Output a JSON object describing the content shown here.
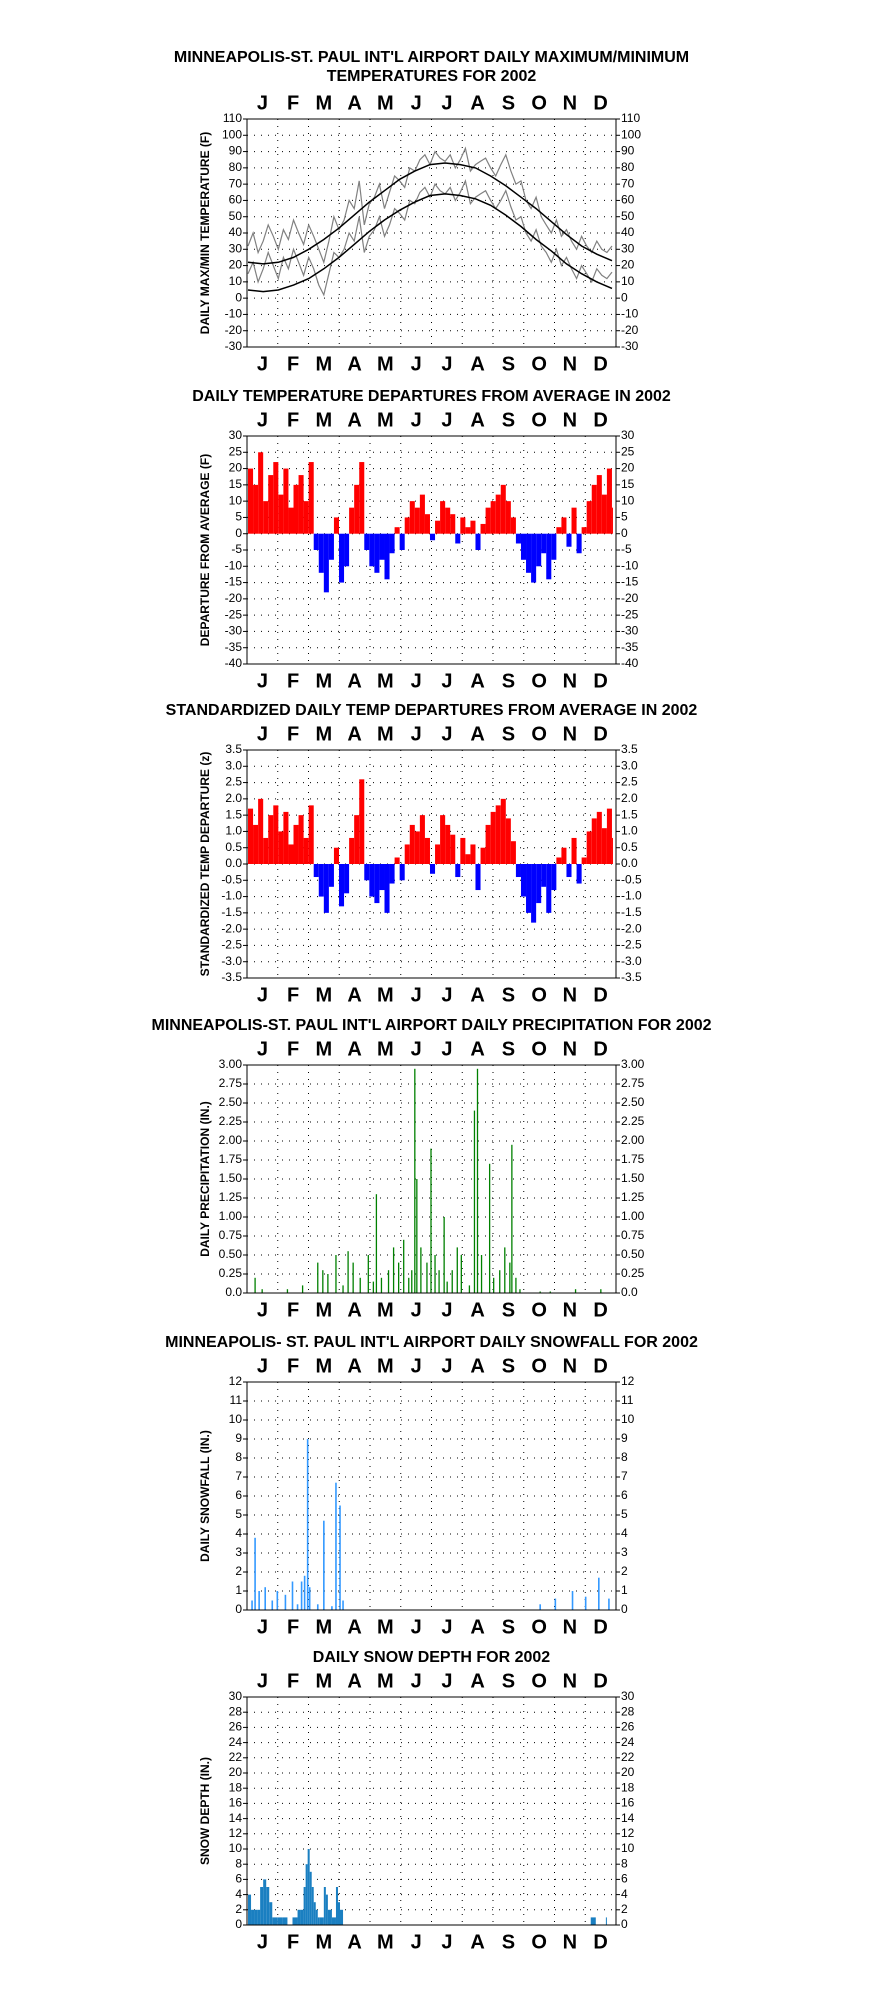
{
  "chart_data": [
    {
      "type": "line",
      "title": [
        "MINNEAPOLIS-ST. PAUL INT'L AIRPORT DAILY MAXIMUM/MINIMUM",
        "TEMPERATURES FOR 2002"
      ],
      "ylabel": "DAILY MAX/MIN TEMPERATURE (F)",
      "categories": [
        "J",
        "F",
        "M",
        "A",
        "M",
        "J",
        "J",
        "A",
        "S",
        "O",
        "N",
        "D"
      ],
      "xlim": [
        0,
        365
      ],
      "ylim": [
        -30,
        110
      ],
      "yticks": [
        -30,
        -20,
        -10,
        0,
        10,
        20,
        30,
        40,
        50,
        60,
        70,
        80,
        90,
        100,
        110
      ],
      "grid": true,
      "series": [
        {
          "color": "#808080",
          "x": [
            1,
            6,
            11,
            16,
            21,
            26,
            31,
            36,
            41,
            46,
            51,
            56,
            61,
            66,
            71,
            76,
            81,
            86,
            91,
            96,
            101,
            106,
            111,
            116,
            121,
            126,
            131,
            136,
            141,
            146,
            151,
            156,
            161,
            166,
            171,
            176,
            181,
            186,
            191,
            196,
            201,
            206,
            211,
            216,
            221,
            226,
            231,
            236,
            241,
            246,
            251,
            256,
            261,
            266,
            271,
            276,
            281,
            286,
            291,
            296,
            301,
            306,
            311,
            316,
            321,
            326,
            331,
            336,
            341,
            346,
            351,
            356,
            361
          ],
          "values": [
            32,
            40,
            28,
            35,
            45,
            38,
            30,
            42,
            36,
            48,
            40,
            33,
            45,
            38,
            30,
            22,
            35,
            50,
            42,
            48,
            60,
            55,
            72,
            45,
            58,
            62,
            70,
            55,
            65,
            75,
            72,
            68,
            80,
            78,
            85,
            88,
            82,
            90,
            86,
            84,
            88,
            80,
            85,
            92,
            78,
            82,
            84,
            86,
            80,
            75,
            82,
            88,
            78,
            70,
            72,
            60,
            55,
            62,
            50,
            45,
            40,
            48,
            38,
            42,
            35,
            30,
            38,
            32,
            28,
            35,
            30,
            28,
            32
          ]
        },
        {
          "color": "#808080",
          "x": [
            1,
            6,
            11,
            16,
            21,
            26,
            31,
            36,
            41,
            46,
            51,
            56,
            61,
            66,
            71,
            76,
            81,
            86,
            91,
            96,
            101,
            106,
            111,
            116,
            121,
            126,
            131,
            136,
            141,
            146,
            151,
            156,
            161,
            166,
            171,
            176,
            181,
            186,
            191,
            196,
            201,
            206,
            211,
            216,
            221,
            226,
            231,
            236,
            241,
            246,
            251,
            256,
            261,
            266,
            271,
            276,
            281,
            286,
            291,
            296,
            301,
            306,
            311,
            316,
            321,
            326,
            331,
            336,
            341,
            346,
            351,
            356,
            361
          ],
          "values": [
            15,
            22,
            10,
            18,
            28,
            20,
            12,
            25,
            18,
            30,
            22,
            14,
            25,
            18,
            8,
            2,
            15,
            28,
            25,
            30,
            40,
            35,
            50,
            28,
            38,
            42,
            50,
            38,
            45,
            55,
            52,
            48,
            60,
            58,
            65,
            68,
            62,
            70,
            66,
            64,
            68,
            60,
            65,
            72,
            58,
            62,
            64,
            66,
            60,
            55,
            60,
            66,
            56,
            48,
            50,
            40,
            35,
            42,
            32,
            28,
            22,
            30,
            20,
            25,
            18,
            12,
            20,
            15,
            10,
            18,
            14,
            12,
            16
          ]
        },
        {
          "color": "#000000",
          "x": [
            1,
            16,
            31,
            46,
            61,
            76,
            91,
            106,
            121,
            136,
            151,
            166,
            181,
            196,
            211,
            226,
            241,
            256,
            271,
            286,
            301,
            316,
            331,
            346,
            361
          ],
          "values": [
            22,
            21,
            22,
            25,
            30,
            36,
            43,
            51,
            59,
            66,
            73,
            78,
            82,
            83,
            82,
            80,
            75,
            69,
            62,
            55,
            47,
            39,
            32,
            27,
            23
          ]
        },
        {
          "color": "#000000",
          "x": [
            1,
            16,
            31,
            46,
            61,
            76,
            91,
            106,
            121,
            136,
            151,
            166,
            181,
            196,
            211,
            226,
            241,
            256,
            271,
            286,
            301,
            316,
            331,
            346,
            361
          ],
          "values": [
            5,
            4,
            5,
            8,
            12,
            18,
            25,
            33,
            41,
            48,
            54,
            59,
            63,
            64,
            63,
            61,
            57,
            51,
            44,
            36,
            29,
            21,
            15,
            10,
            6
          ]
        }
      ]
    },
    {
      "type": "bar",
      "title": "DAILY TEMPERATURE DEPARTURES FROM AVERAGE IN 2002",
      "ylabel": "DEPARTURE FROM AVERAGE (F)",
      "categories": [
        "J",
        "F",
        "M",
        "A",
        "M",
        "J",
        "J",
        "A",
        "S",
        "O",
        "N",
        "D"
      ],
      "xlim": [
        0,
        365
      ],
      "ylim": [
        -40,
        30
      ],
      "yticks": [
        -40,
        -35,
        -30,
        -25,
        -20,
        -15,
        -10,
        -5,
        0,
        5,
        10,
        15,
        20,
        25,
        30
      ],
      "grid": true,
      "pos_color": "#ff0000",
      "neg_color": "#0000ff",
      "x": [
        1,
        6,
        11,
        16,
        21,
        26,
        31,
        36,
        41,
        46,
        51,
        56,
        61,
        66,
        71,
        76,
        81,
        86,
        91,
        96,
        101,
        106,
        111,
        116,
        121,
        126,
        131,
        136,
        141,
        146,
        151,
        156,
        161,
        166,
        171,
        176,
        181,
        186,
        191,
        196,
        201,
        206,
        211,
        216,
        221,
        226,
        231,
        236,
        241,
        246,
        251,
        256,
        261,
        266,
        271,
        276,
        281,
        286,
        291,
        296,
        301,
        306,
        311,
        316,
        321,
        326,
        331,
        336,
        341,
        346,
        351,
        356,
        361
      ],
      "values": [
        20,
        15,
        25,
        10,
        18,
        22,
        12,
        20,
        8,
        15,
        18,
        10,
        22,
        -5,
        -12,
        -18,
        -8,
        5,
        -15,
        -10,
        8,
        15,
        22,
        -5,
        -10,
        -12,
        -8,
        -14,
        -6,
        2,
        -5,
        5,
        10,
        8,
        12,
        6,
        -2,
        4,
        10,
        8,
        6,
        -3,
        5,
        2,
        4,
        -5,
        3,
        8,
        10,
        12,
        15,
        10,
        5,
        -3,
        -8,
        -12,
        -15,
        -10,
        -6,
        -14,
        -8,
        2,
        5,
        -4,
        8,
        -6,
        2,
        10,
        15,
        18,
        12,
        20,
        8
      ]
    },
    {
      "type": "bar",
      "title": "STANDARDIZED DAILY TEMP DEPARTURES FROM AVERAGE IN 2002",
      "ylabel": "STANDARDIZED TEMP DEPARTURE (z)",
      "categories": [
        "J",
        "F",
        "M",
        "A",
        "M",
        "J",
        "J",
        "A",
        "S",
        "O",
        "N",
        "D"
      ],
      "xlim": [
        0,
        365
      ],
      "ylim": [
        -3.5,
        3.5
      ],
      "yticks": [
        -3.5,
        {
          "value": -3,
          "label": "-3.0"
        },
        -2.5,
        {
          "value": -2,
          "label": "-2.0"
        },
        -1.5,
        {
          "value": -1,
          "label": "-1.0"
        },
        -0.5,
        {
          "value": 0,
          "label": "0.0"
        },
        0.5,
        {
          "value": 1,
          "label": "1.0"
        },
        1.5,
        {
          "value": 2,
          "label": "2.0"
        },
        2.5,
        {
          "value": 3,
          "label": "3.0"
        },
        3.5
      ],
      "grid": true,
      "pos_color": "#ff0000",
      "neg_color": "#0000ff",
      "x": [
        1,
        6,
        11,
        16,
        21,
        26,
        31,
        36,
        41,
        46,
        51,
        56,
        61,
        66,
        71,
        76,
        81,
        86,
        91,
        96,
        101,
        106,
        111,
        116,
        121,
        126,
        131,
        136,
        141,
        146,
        151,
        156,
        161,
        166,
        171,
        176,
        181,
        186,
        191,
        196,
        201,
        206,
        211,
        216,
        221,
        226,
        231,
        236,
        241,
        246,
        251,
        256,
        261,
        266,
        271,
        276,
        281,
        286,
        291,
        296,
        301,
        306,
        311,
        316,
        321,
        326,
        331,
        336,
        341,
        346,
        351,
        356,
        361
      ],
      "values": [
        1.7,
        1.2,
        2.0,
        0.8,
        1.5,
        1.8,
        1.0,
        1.6,
        0.6,
        1.2,
        1.5,
        0.8,
        1.8,
        -0.4,
        -1.0,
        -1.5,
        -0.7,
        0.5,
        -1.3,
        -0.9,
        0.8,
        1.5,
        2.6,
        -0.5,
        -1.0,
        -1.2,
        -0.8,
        -1.5,
        -0.6,
        0.2,
        -0.5,
        0.6,
        1.2,
        1.0,
        1.5,
        0.8,
        -0.3,
        0.6,
        1.5,
        1.2,
        0.9,
        -0.4,
        0.8,
        0.3,
        0.6,
        -0.8,
        0.5,
        1.2,
        1.6,
        1.8,
        2.0,
        1.4,
        0.7,
        -0.4,
        -1.0,
        -1.5,
        -1.8,
        -1.2,
        -0.7,
        -1.5,
        -0.8,
        0.2,
        0.5,
        -0.4,
        0.8,
        -0.6,
        0.2,
        1.0,
        1.4,
        1.6,
        1.1,
        1.7,
        0.8
      ]
    },
    {
      "type": "bar",
      "title": "MINNEAPOLIS-ST. PAUL INT'L AIRPORT DAILY PRECIPITATION FOR 2002",
      "ylabel": "DAILY PRECIPITATION (IN.)",
      "categories": [
        "J",
        "F",
        "M",
        "A",
        "M",
        "J",
        "J",
        "A",
        "S",
        "O",
        "N",
        "D"
      ],
      "xlim": [
        0,
        365
      ],
      "ylim": [
        0,
        3
      ],
      "yticks": [
        {
          "value": 0,
          "label": "0.0"
        },
        0.25,
        {
          "value": 0.5,
          "label": "0.50"
        },
        0.75,
        {
          "value": 1,
          "label": "1.00"
        },
        1.25,
        {
          "value": 1.5,
          "label": "1.50"
        },
        1.75,
        {
          "value": 2,
          "label": "2.00"
        },
        2.25,
        {
          "value": 2.5,
          "label": "2.50"
        },
        2.75,
        {
          "value": 3,
          "label": "3.00"
        }
      ],
      "grid": true,
      "color": "#008000",
      "x": [
        8,
        15,
        40,
        55,
        70,
        75,
        80,
        88,
        95,
        100,
        105,
        112,
        120,
        125,
        128,
        133,
        140,
        145,
        150,
        155,
        160,
        163,
        166,
        168,
        172,
        178,
        182,
        186,
        190,
        195,
        198,
        203,
        208,
        212,
        220,
        225,
        228,
        232,
        240,
        244,
        250,
        255,
        260,
        262,
        266,
        270,
        290,
        300,
        325,
        350
      ],
      "values": [
        0.2,
        0.05,
        0.05,
        0.1,
        0.4,
        0.3,
        0.25,
        0.5,
        0.1,
        0.55,
        0.4,
        0.2,
        0.5,
        0.15,
        1.3,
        0.2,
        0.3,
        0.6,
        0.4,
        0.7,
        0.2,
        0.3,
        2.95,
        1.5,
        0.6,
        0.4,
        1.9,
        0.5,
        0.3,
        1.0,
        0.15,
        0.3,
        0.6,
        0.5,
        0.1,
        2.4,
        2.95,
        0.5,
        1.7,
        0.2,
        0.3,
        0.6,
        0.4,
        1.95,
        0.2,
        0.05,
        0.02,
        0.02,
        0.05,
        0.05
      ]
    },
    {
      "type": "bar",
      "title": "MINNEAPOLIS- ST. PAUL INT'L AIRPORT DAILY SNOWFALL FOR 2002",
      "ylabel": "DAILY SNOWFALL (IN.)",
      "categories": [
        "J",
        "F",
        "M",
        "A",
        "M",
        "J",
        "J",
        "A",
        "S",
        "O",
        "N",
        "D"
      ],
      "xlim": [
        0,
        365
      ],
      "ylim": [
        0,
        12
      ],
      "yticks": [
        0,
        1,
        2,
        3,
        4,
        5,
        6,
        7,
        8,
        9,
        10,
        11,
        12
      ],
      "grid": true,
      "color": "#3399ff",
      "x": [
        5,
        8,
        12,
        18,
        25,
        30,
        38,
        45,
        50,
        54,
        57,
        60,
        62,
        70,
        76,
        84,
        88,
        92,
        95,
        290,
        305,
        322,
        335,
        348,
        358
      ],
      "values": [
        0.5,
        3.8,
        1.0,
        1.2,
        0.5,
        1.0,
        0.8,
        1.5,
        0.3,
        1.5,
        1.8,
        9.0,
        1.2,
        0.3,
        4.7,
        0.2,
        6.7,
        5.5,
        0.5,
        0.3,
        0.6,
        1.0,
        0.7,
        1.7,
        0.6
      ]
    },
    {
      "type": "bar",
      "title": "DAILY SNOW DEPTH FOR 2002",
      "ylabel": "SNOW DEPTH (IN.)",
      "categories": [
        "J",
        "F",
        "M",
        "A",
        "M",
        "J",
        "J",
        "A",
        "S",
        "O",
        "N",
        "D"
      ],
      "xlim": [
        0,
        365
      ],
      "ylim": [
        0,
        30
      ],
      "yticks": [
        0,
        2,
        4,
        6,
        8,
        10,
        12,
        14,
        16,
        18,
        20,
        22,
        24,
        26,
        28,
        30
      ],
      "grid": true,
      "color": "#1a7fc1",
      "x": [
        1,
        4,
        7,
        10,
        13,
        16,
        19,
        22,
        25,
        30,
        35,
        40,
        45,
        50,
        53,
        56,
        58,
        60,
        62,
        64,
        66,
        68,
        70,
        72,
        76,
        78,
        80,
        84,
        88,
        90,
        92,
        95,
        340,
        355
      ],
      "values": [
        4,
        2,
        2,
        2,
        5,
        6,
        5,
        3,
        1,
        1,
        1,
        0,
        1,
        2,
        2,
        5,
        8,
        10,
        7,
        5,
        3,
        2,
        1,
        1,
        5,
        4,
        2,
        1,
        5,
        3,
        2,
        0,
        1,
        1
      ]
    }
  ]
}
